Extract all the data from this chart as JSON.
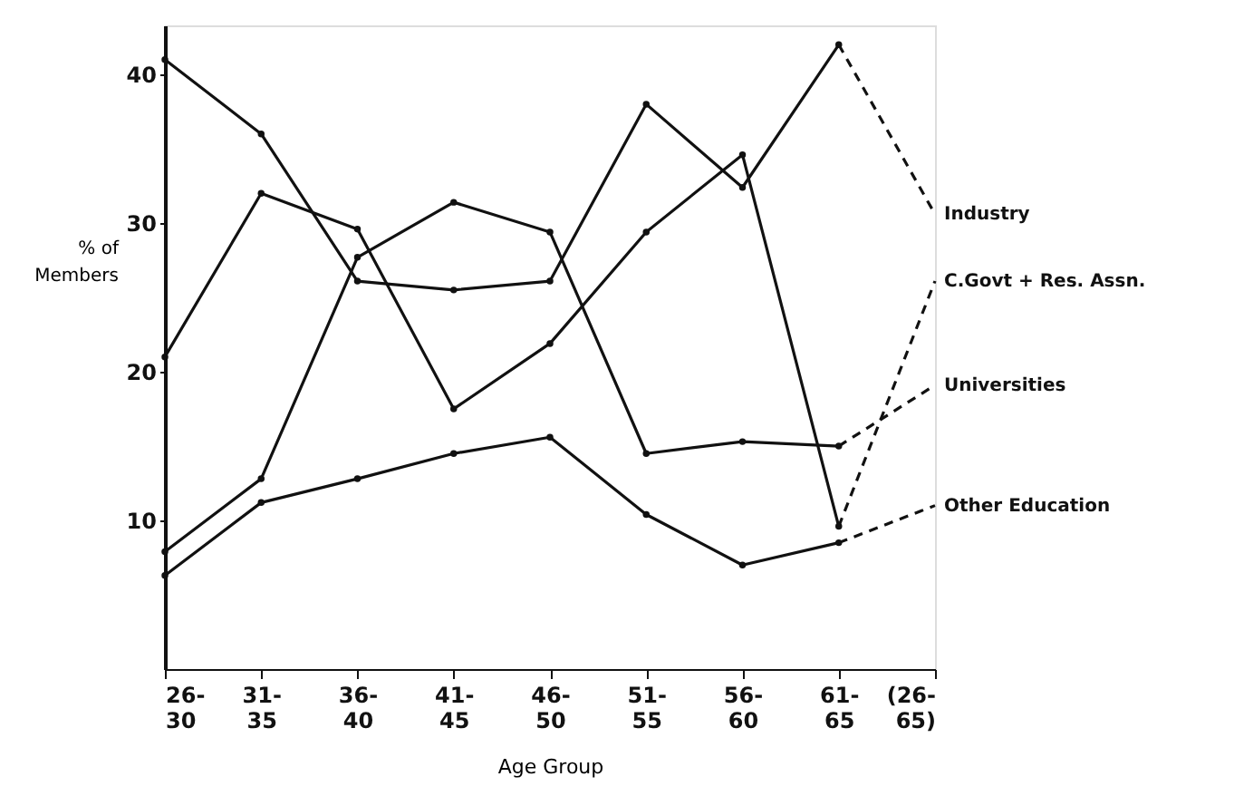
{
  "chart_data": {
    "type": "line",
    "xlabel": "Age Group",
    "ylabel": "% of Members",
    "categories": [
      "26-30",
      "31-35",
      "36-40",
      "41-45",
      "46-50",
      "51-55",
      "56-60",
      "61-65",
      "(26-65)"
    ],
    "series": [
      {
        "color": "#111111",
        "values": [
          41,
          36,
          26.1,
          25.5,
          26.1,
          38,
          32.4,
          42,
          null
        ]
      },
      {
        "color": "#111111",
        "values": [
          21,
          32,
          29.6,
          17.5,
          21.9,
          29.4,
          34.6,
          9.6,
          null
        ]
      },
      {
        "color": "#111111",
        "values": [
          7.9,
          12.8,
          27.7,
          31.4,
          29.4,
          14.5,
          15.3,
          15,
          null
        ]
      },
      {
        "color": "#111111",
        "values": [
          6.3,
          11.2,
          12.8,
          14.5,
          15.6,
          10.4,
          7,
          8.5,
          null
        ]
      },
      {
        "name": "Industry",
        "color": "#111111",
        "line_style": "dashed",
        "marker": "none",
        "values": [
          null,
          null,
          null,
          null,
          null,
          null,
          null,
          42,
          30.6
        ]
      },
      {
        "name": "C.Govt + Res. Assn.",
        "color": "#111111",
        "line_style": "dashed",
        "marker": "none",
        "values": [
          null,
          null,
          null,
          null,
          null,
          null,
          null,
          9.6,
          26.1
        ]
      },
      {
        "name": "Universities",
        "color": "#111111",
        "line_style": "dashed",
        "marker": "none",
        "values": [
          null,
          null,
          null,
          null,
          null,
          null,
          null,
          15,
          19.1
        ]
      },
      {
        "name": "Other Education",
        "color": "#111111",
        "line_style": "dashed",
        "marker": "none",
        "values": [
          null,
          null,
          null,
          null,
          null,
          null,
          null,
          8.5,
          11
        ]
      }
    ],
    "ylim": [
      0,
      43.3
    ],
    "yticks": [
      10,
      20,
      30,
      40
    ],
    "grid": false,
    "legend": false,
    "marker": "circle",
    "line_style": "solid"
  }
}
